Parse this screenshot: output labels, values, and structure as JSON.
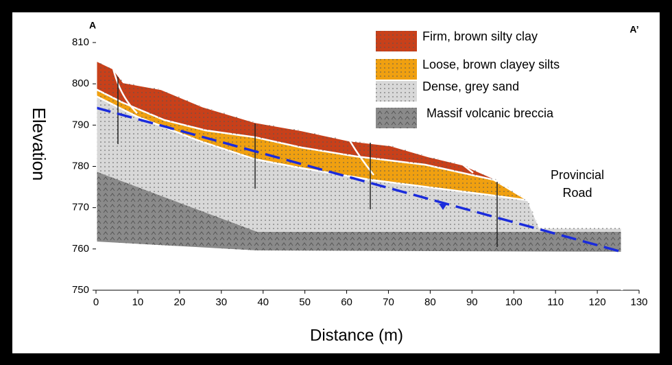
{
  "labels": {
    "left_end": "A",
    "right_end": "A’",
    "x_axis": "Distance (m)",
    "y_axis": "Elevation",
    "road": [
      "Provincial",
      "Road"
    ]
  },
  "axes": {
    "xlim": [
      0,
      130
    ],
    "xticks": [
      0,
      10,
      20,
      30,
      40,
      50,
      60,
      70,
      80,
      90,
      100,
      110,
      120,
      130
    ],
    "ylim": [
      750,
      810
    ],
    "yticks": [
      750,
      760,
      770,
      780,
      790,
      800,
      810
    ]
  },
  "legend": [
    {
      "label": "Firm, brown silty clay",
      "color": "#c8401a"
    },
    {
      "label": "Loose, brown clayey silts",
      "color": "#f0a010"
    },
    {
      "label": "Dense, grey sand",
      "color": "#d8d8d8"
    },
    {
      "label": "Massif volcanic breccia",
      "color": "#8a8a8a"
    }
  ]
}
